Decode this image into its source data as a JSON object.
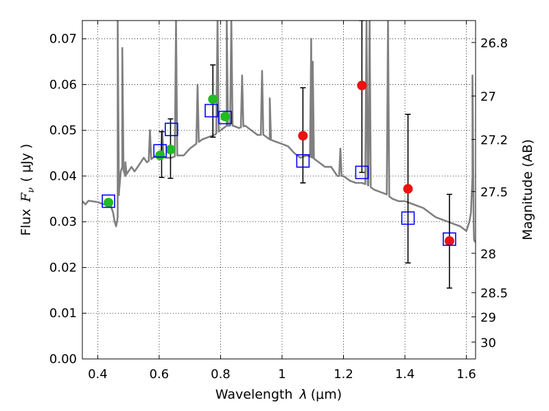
{
  "chart_data": {
    "type": "scatter",
    "title": "",
    "xlabel_prefix": "Wavelength",
    "xlabel_symbol": "λ",
    "xlabel_unit": "(μm)",
    "ylabel_prefix": "Flux",
    "ylabel_symbol": "F",
    "ylabel_subscript": "ν",
    "ylabel_unit": "( μJy )",
    "y2label": "Magnitude (AB)",
    "xlim": [
      0.35,
      1.63
    ],
    "ylim": [
      0.0,
      0.074
    ],
    "grid": true,
    "x_ticks": [
      0.4,
      0.6,
      0.8,
      1.0,
      1.2,
      1.4,
      1.6
    ],
    "x_tick_labels": [
      "0.4",
      "0.6",
      "0.8",
      "1",
      "1.2",
      "1.4",
      "1.6"
    ],
    "y_ticks": [
      0.0,
      0.01,
      0.02,
      0.03,
      0.04,
      0.05,
      0.06,
      0.07
    ],
    "y_tick_labels": [
      "0.00",
      "0.01",
      "0.02",
      "0.03",
      "0.04",
      "0.05",
      "0.06",
      "0.07"
    ],
    "y2_ticks": [
      {
        "flux": 0.0692,
        "label": "26.8"
      },
      {
        "flux": 0.0575,
        "label": "27"
      },
      {
        "flux": 0.048,
        "label": "27.2"
      },
      {
        "flux": 0.0366,
        "label": "27.5"
      },
      {
        "flux": 0.0231,
        "label": "28"
      },
      {
        "flux": 0.0145,
        "label": "28.5"
      },
      {
        "flux": 0.0092,
        "label": "29"
      },
      {
        "flux": 0.0037,
        "label": "30"
      }
    ],
    "colors": {
      "template": "#808080",
      "hst_points": "#22bb22",
      "ir_points": "#ee1111",
      "model_squares": "#0000ff",
      "errorbars": "#000000"
    },
    "series": [
      {
        "kind": "line",
        "x": [
          0.35,
          0.36,
          0.37,
          0.38,
          0.4,
          0.42,
          0.44,
          0.445,
          0.45,
          0.455,
          0.46,
          0.465,
          0.47,
          0.475,
          0.48,
          0.485,
          0.49,
          0.5,
          0.51,
          0.52,
          0.53,
          0.54,
          0.55,
          0.56,
          0.58,
          0.6,
          0.62,
          0.64,
          0.66,
          0.68,
          0.7,
          0.72,
          0.74,
          0.76,
          0.78,
          0.8,
          0.82,
          0.84,
          0.86,
          0.88,
          0.9,
          0.92,
          0.94,
          0.96,
          0.98,
          1.0,
          1.02,
          1.04,
          1.06,
          1.08,
          1.1,
          1.12,
          1.14,
          1.16,
          1.18,
          1.2,
          1.22,
          1.24,
          1.26,
          1.28,
          1.3,
          1.32,
          1.34,
          1.36,
          1.38,
          1.4,
          1.42,
          1.44,
          1.46,
          1.48,
          1.5,
          1.52,
          1.54,
          1.56,
          1.58,
          1.6,
          1.61,
          1.615,
          1.62,
          1.625,
          1.63
        ],
        "y": [
          0.0345,
          0.0338,
          0.0346,
          0.0345,
          0.0343,
          0.0338,
          0.034,
          0.033,
          0.032,
          0.03,
          0.029,
          0.031,
          0.037,
          0.041,
          0.042,
          0.041,
          0.04,
          0.041,
          0.042,
          0.041,
          0.042,
          0.043,
          0.044,
          0.043,
          0.044,
          0.045,
          0.044,
          0.044,
          0.0445,
          0.0445,
          0.046,
          0.047,
          0.048,
          0.0485,
          0.049,
          0.05,
          0.051,
          0.051,
          0.0505,
          0.051,
          0.05,
          0.049,
          0.049,
          0.048,
          0.0475,
          0.047,
          0.0465,
          0.045,
          0.044,
          0.0445,
          0.044,
          0.043,
          0.042,
          0.042,
          0.04,
          0.04,
          0.039,
          0.0385,
          0.0385,
          0.038,
          0.037,
          0.0365,
          0.036,
          0.035,
          0.0345,
          0.0345,
          0.034,
          0.0335,
          0.033,
          0.032,
          0.031,
          0.0305,
          0.03,
          0.0295,
          0.029,
          0.028,
          0.03,
          0.032,
          0.04,
          0.026,
          0.0255
        ],
        "peaks": [
          {
            "x": 0.465,
            "y": 0.074
          },
          {
            "x": 0.48,
            "y": 0.068
          },
          {
            "x": 0.49,
            "y": 0.043
          },
          {
            "x": 0.57,
            "y": 0.05
          },
          {
            "x": 0.61,
            "y": 0.05
          },
          {
            "x": 0.655,
            "y": 0.074
          },
          {
            "x": 0.725,
            "y": 0.06
          },
          {
            "x": 0.79,
            "y": 0.074
          },
          {
            "x": 0.82,
            "y": 0.074
          },
          {
            "x": 0.835,
            "y": 0.074
          },
          {
            "x": 0.87,
            "y": 0.062
          },
          {
            "x": 0.935,
            "y": 0.063
          },
          {
            "x": 0.96,
            "y": 0.057
          },
          {
            "x": 1.095,
            "y": 0.07
          },
          {
            "x": 1.1,
            "y": 0.065
          },
          {
            "x": 1.19,
            "y": 0.046
          },
          {
            "x": 1.275,
            "y": 0.074
          },
          {
            "x": 1.285,
            "y": 0.074
          },
          {
            "x": 1.345,
            "y": 0.074
          },
          {
            "x": 1.62,
            "y": 0.062
          }
        ]
      },
      {
        "kind": "errorbar",
        "points": [
          {
            "x": 0.608,
            "y": 0.0445,
            "lo": 0.0397,
            "hi": 0.0497
          },
          {
            "x": 0.637,
            "y": 0.0458,
            "lo": 0.0395,
            "hi": 0.0525
          },
          {
            "x": 0.775,
            "y": 0.0568,
            "lo": 0.0485,
            "hi": 0.0643
          },
          {
            "x": 1.068,
            "y": 0.0488,
            "lo": 0.0385,
            "hi": 0.0593
          },
          {
            "x": 1.26,
            "y": 0.0598,
            "lo": 0.0408,
            "hi": 0.074
          },
          {
            "x": 1.41,
            "y": 0.0372,
            "lo": 0.021,
            "hi": 0.0535
          },
          {
            "x": 1.545,
            "y": 0.0258,
            "lo": 0.0155,
            "hi": 0.036
          }
        ]
      },
      {
        "kind": "points",
        "marker": "circle",
        "color_key": "hst_points",
        "x": [
          0.435,
          0.603,
          0.637,
          0.775,
          0.815
        ],
        "y": [
          0.0342,
          0.0445,
          0.0458,
          0.0568,
          0.053
        ]
      },
      {
        "kind": "points",
        "marker": "circle",
        "color_key": "ir_points",
        "x": [
          1.068,
          1.26,
          1.41,
          1.545
        ],
        "y": [
          0.0488,
          0.0598,
          0.0372,
          0.0258
        ]
      },
      {
        "kind": "points",
        "marker": "square",
        "color_key": "model_squares",
        "x": [
          0.435,
          0.603,
          0.64,
          0.77,
          0.815,
          1.068,
          1.26,
          1.41,
          1.545
        ],
        "y": [
          0.0345,
          0.0455,
          0.0502,
          0.0543,
          0.0528,
          0.0433,
          0.0408,
          0.0308,
          0.0262
        ]
      }
    ]
  }
}
